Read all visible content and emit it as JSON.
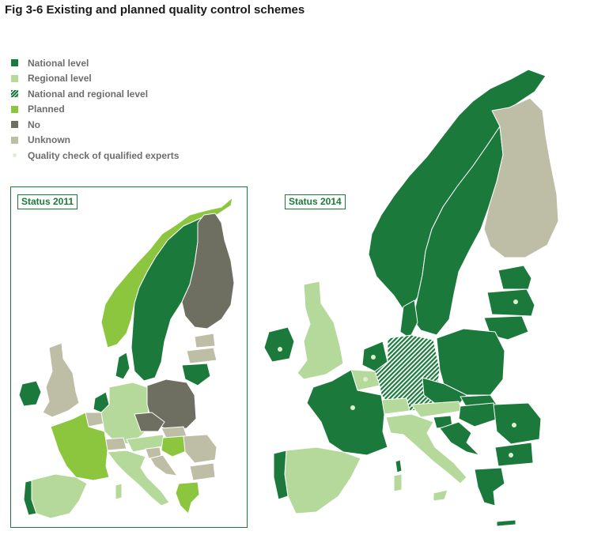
{
  "title": "Fig 3-6 Existing and planned quality control schemes",
  "colors": {
    "national": "#1b7a3b",
    "regional": "#b5d89b",
    "national_and_regional": "#1b7a3b",
    "planned": "#8cc63f",
    "no": "#6e6f60",
    "unknown": "#bdbea5",
    "quality_check_dot": "#dfeecf"
  },
  "legend": [
    {
      "key": "national",
      "label": "National level"
    },
    {
      "key": "regional",
      "label": "Regional level"
    },
    {
      "key": "national_and_regional",
      "label": "National and regional level"
    },
    {
      "key": "planned",
      "label": "Planned"
    },
    {
      "key": "no",
      "label": "No"
    },
    {
      "key": "unknown",
      "label": "Unknown"
    },
    {
      "key": "quality_check_dot",
      "label": "Quality check of qualified experts"
    }
  ],
  "maps": {
    "status_2011": {
      "label": "Status 2011",
      "countries": {
        "norway": "planned",
        "sweden": "national",
        "finland": "no",
        "estonia": "unknown",
        "latvia": "unknown",
        "lithuania": "national",
        "denmark": "national",
        "ireland": "national",
        "uk": "unknown",
        "netherlands": "national",
        "belgium": "unknown",
        "germany": "regional",
        "poland": "no",
        "czechia": "no",
        "slovakia": "unknown",
        "austria": "regional",
        "hungary": "planned",
        "slovenia": "unknown",
        "croatia": "unknown",
        "romania": "unknown",
        "bulgaria": "unknown",
        "greece": "planned",
        "france": "planned",
        "spain": "regional",
        "portugal": "national",
        "italy": "regional",
        "switzerland": "unknown"
      }
    },
    "status_2014": {
      "label": "Status 2014",
      "countries": {
        "norway": "national",
        "sweden": "national",
        "finland": "unknown",
        "estonia": "national",
        "latvia": "national",
        "lithuania": "national",
        "denmark": "national",
        "ireland": "national",
        "uk": "regional",
        "netherlands": "national",
        "belgium": "regional",
        "germany": "national_and_regional",
        "poland": "national",
        "czechia": "national",
        "slovakia": "national",
        "austria": "regional",
        "hungary": "national",
        "slovenia": "national",
        "croatia": "national",
        "romania": "national",
        "bulgaria": "national",
        "greece": "national",
        "france": "national",
        "spain": "regional",
        "portugal": "national",
        "italy": "regional",
        "switzerland": "regional"
      },
      "quality_check_countries": [
        "latvia",
        "ireland",
        "netherlands",
        "belgium",
        "france",
        "romania",
        "bulgaria"
      ]
    }
  }
}
